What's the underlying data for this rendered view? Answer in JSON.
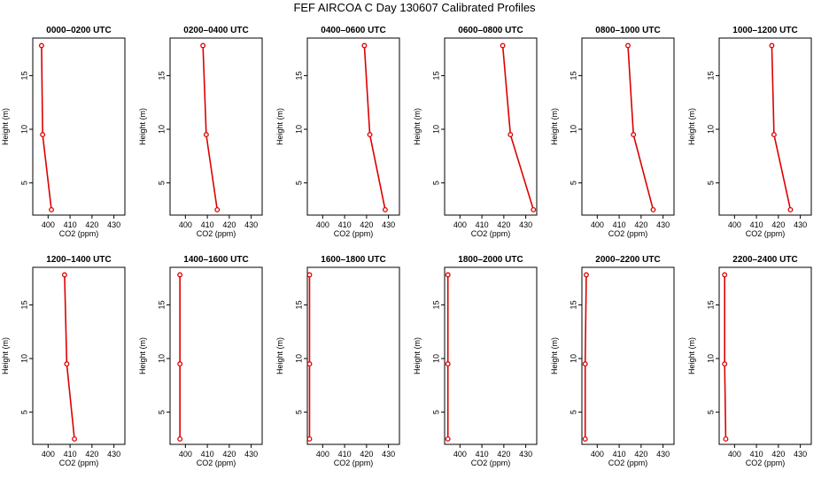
{
  "chart_data": {
    "type": "line",
    "title": "FEF AIRCOA C  Day 130607  Calibrated Profiles",
    "xlabel": "CO2 (ppm)",
    "ylabel": "Height (m)",
    "xlim": [
      393,
      435
    ],
    "ylim": [
      2,
      18.5
    ],
    "xticks": [
      400,
      410,
      420,
      430
    ],
    "yticks": [
      5,
      10,
      15
    ],
    "color": "#dd0000",
    "heights": [
      2.5,
      9.5,
      17.8
    ],
    "panels": [
      {
        "title": "0000–0200 UTC",
        "values": [
          401.5,
          397.5,
          397.0
        ]
      },
      {
        "title": "0200–0400 UTC",
        "values": [
          414.5,
          409.5,
          408.0
        ]
      },
      {
        "title": "0400–0600 UTC",
        "values": [
          428.5,
          421.5,
          419.0
        ]
      },
      {
        "title": "0600–0800 UTC",
        "values": [
          433.5,
          423.0,
          419.5
        ]
      },
      {
        "title": "0800–1000 UTC",
        "values": [
          425.5,
          416.5,
          414.0
        ]
      },
      {
        "title": "1000–1200 UTC",
        "values": [
          425.5,
          418.0,
          417.0
        ]
      },
      {
        "title": "1200–1400 UTC",
        "values": [
          412.0,
          408.5,
          407.5
        ]
      },
      {
        "title": "1400–1600 UTC",
        "values": [
          397.5,
          397.5,
          397.5
        ]
      },
      {
        "title": "1600–1800 UTC",
        "values": [
          394.0,
          394.0,
          394.0
        ]
      },
      {
        "title": "1800–2000 UTC",
        "values": [
          394.5,
          394.5,
          394.5
        ]
      },
      {
        "title": "2000–2200 UTC",
        "values": [
          394.5,
          394.5,
          395.0
        ]
      },
      {
        "title": "2200–2400 UTC",
        "values": [
          396.0,
          395.5,
          395.5
        ]
      }
    ]
  }
}
